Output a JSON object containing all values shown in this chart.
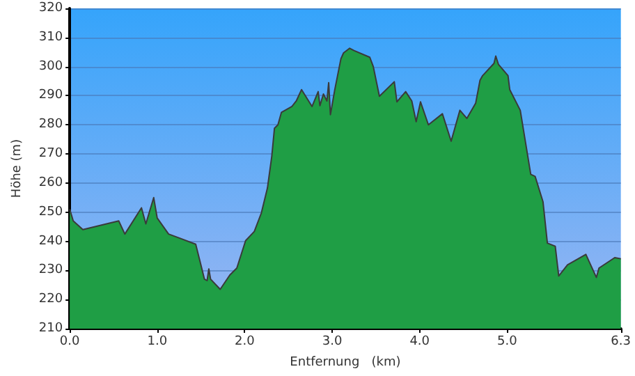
{
  "chart_data": {
    "type": "area",
    "xlabel": "Entfernung   (km)",
    "ylabel": "Höhe (m)",
    "xlim": [
      0,
      6.3
    ],
    "ylim": [
      210,
      320
    ],
    "xticks": [
      {
        "value": 0,
        "label": "0.0"
      },
      {
        "value": 1,
        "label": "1.0"
      },
      {
        "value": 2,
        "label": "2.0"
      },
      {
        "value": 3,
        "label": "3.0"
      },
      {
        "value": 4,
        "label": "4.0"
      },
      {
        "value": 5,
        "label": "5.0"
      },
      {
        "value": 6.3,
        "label": "6.3"
      }
    ],
    "yticks": [
      210,
      220,
      230,
      240,
      250,
      260,
      270,
      280,
      290,
      300,
      310,
      320
    ],
    "grid": "y",
    "marker": "none",
    "line_style": "solid",
    "series": [
      {
        "color": "#1f9e45",
        "x": [
          0,
          0.04,
          0.15,
          0.56,
          0.63,
          0.82,
          0.87,
          0.96,
          1.0,
          1.13,
          1.44,
          1.49,
          1.54,
          1.57,
          1.59,
          1.61,
          1.72,
          1.83,
          1.91,
          2.01,
          2.11,
          2.19,
          2.26,
          2.31,
          2.34,
          2.38,
          2.42,
          2.54,
          2.59,
          2.65,
          2.77,
          2.84,
          2.86,
          2.9,
          2.94,
          2.96,
          2.98,
          3.03,
          3.1,
          3.13,
          3.2,
          3.25,
          3.43,
          3.47,
          3.54,
          3.71,
          3.74,
          3.84,
          3.91,
          3.96,
          4.01,
          4.1,
          4.26,
          4.36,
          4.46,
          4.54,
          4.64,
          4.69,
          4.72,
          4.85,
          4.87,
          4.9,
          5.01,
          5.03,
          5.15,
          5.27,
          5.32,
          5.41,
          5.46,
          5.55,
          5.59,
          5.69,
          5.9,
          6.02,
          6.05,
          6.23,
          6.3
        ],
        "values": [
          251,
          247,
          244,
          247,
          242.5,
          251.5,
          246,
          255,
          248,
          242.5,
          239,
          233,
          227,
          226.5,
          230.5,
          227,
          223.5,
          228.4,
          230.8,
          240.2,
          243.4,
          249.7,
          258.3,
          269.3,
          278.8,
          280,
          284.3,
          286.3,
          288.2,
          292.1,
          286.3,
          291.4,
          286.6,
          290.6,
          288.2,
          294.5,
          283.5,
          292.1,
          302.7,
          304.7,
          306.3,
          305.5,
          303.2,
          300,
          289.8,
          294.8,
          287.9,
          291.4,
          288.2,
          281.1,
          287.9,
          280,
          283.8,
          274.4,
          285,
          282.2,
          287.4,
          295.3,
          296.9,
          301.1,
          303.6,
          300.8,
          296.9,
          292.1,
          285,
          263,
          262.3,
          253.6,
          239.4,
          238.3,
          228.1,
          231.9,
          235.5,
          227.6,
          230.8,
          234.4,
          234
        ]
      }
    ]
  }
}
